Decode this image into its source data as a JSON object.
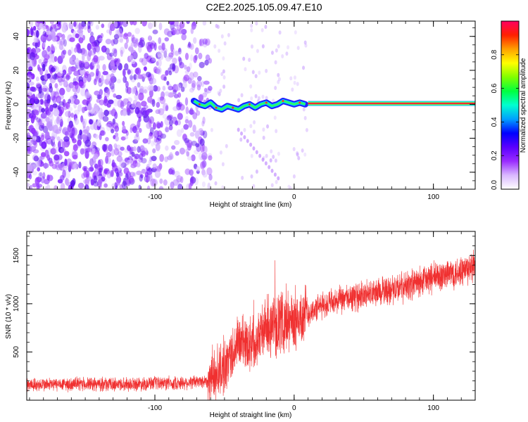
{
  "title": "C2E2.2025.105.09.47.E10",
  "chart_data": [
    {
      "type": "heatmap",
      "xlabel": "Height of straight line (km)",
      "ylabel": "Frequency (Hz)",
      "xlim": [
        -192,
        130
      ],
      "ylim": [
        -50,
        49
      ],
      "xticks": [
        -100,
        0,
        100
      ],
      "yticks": [
        -40,
        -20,
        0,
        20,
        40
      ],
      "colorbar": {
        "label": "Normalized spectral amplitude",
        "range": [
          0,
          1
        ],
        "ticks": [
          "0.0",
          "0.2",
          "0.4",
          "0.6",
          "0.8"
        ],
        "colors": [
          "#ffffff",
          "#d9b8ff",
          "#9a2cff",
          "#5a00ff",
          "#0000ff",
          "#00a0ff",
          "#00ffd0",
          "#00ff40",
          "#80ff00",
          "#ffff00",
          "#ffa000",
          "#ff2000",
          "#ff0060"
        ]
      },
      "ridge": {
        "frequency": 0.5,
        "x_range": [
          10,
          130
        ],
        "note_free": true
      },
      "noisy_ridge": [
        {
          "x": -72,
          "y": 2
        },
        {
          "x": -68,
          "y": 0
        },
        {
          "x": -64,
          "y": -1
        },
        {
          "x": -60,
          "y": 1
        },
        {
          "x": -56,
          "y": -2
        },
        {
          "x": -52,
          "y": -3
        },
        {
          "x": -48,
          "y": -1
        },
        {
          "x": -44,
          "y": -2
        },
        {
          "x": -40,
          "y": -3
        },
        {
          "x": -36,
          "y": -1
        },
        {
          "x": -32,
          "y": 0
        },
        {
          "x": -28,
          "y": -2
        },
        {
          "x": -24,
          "y": 0
        },
        {
          "x": -20,
          "y": 1
        },
        {
          "x": -16,
          "y": -1
        },
        {
          "x": -12,
          "y": 0
        },
        {
          "x": -8,
          "y": 2
        },
        {
          "x": -4,
          "y": 1
        },
        {
          "x": 0,
          "y": 0
        },
        {
          "x": 4,
          "y": 1
        },
        {
          "x": 8,
          "y": 0
        }
      ],
      "noise_region_x": [
        -192,
        -60
      ]
    },
    {
      "type": "line",
      "xlabel": "Height of straight line (km)",
      "ylabel": "SNR (10 * v/v)",
      "xlim": [
        -192,
        130
      ],
      "ylim": [
        0,
        1750
      ],
      "xticks": [
        -100,
        0,
        100
      ],
      "yticks": [
        500,
        1000,
        1500
      ],
      "color": "#f03030",
      "profile": [
        {
          "x": -192,
          "y": 160
        },
        {
          "x": -150,
          "y": 165
        },
        {
          "x": -110,
          "y": 170
        },
        {
          "x": -80,
          "y": 180
        },
        {
          "x": -62,
          "y": 200
        },
        {
          "x": -50,
          "y": 350
        },
        {
          "x": -40,
          "y": 600
        },
        {
          "x": -30,
          "y": 600
        },
        {
          "x": -20,
          "y": 760
        },
        {
          "x": -10,
          "y": 800
        },
        {
          "x": 0,
          "y": 820
        },
        {
          "x": 10,
          "y": 900
        },
        {
          "x": 20,
          "y": 980
        },
        {
          "x": 40,
          "y": 1060
        },
        {
          "x": 60,
          "y": 1120
        },
        {
          "x": 80,
          "y": 1180
        },
        {
          "x": 100,
          "y": 1270
        },
        {
          "x": 130,
          "y": 1380
        }
      ]
    }
  ]
}
